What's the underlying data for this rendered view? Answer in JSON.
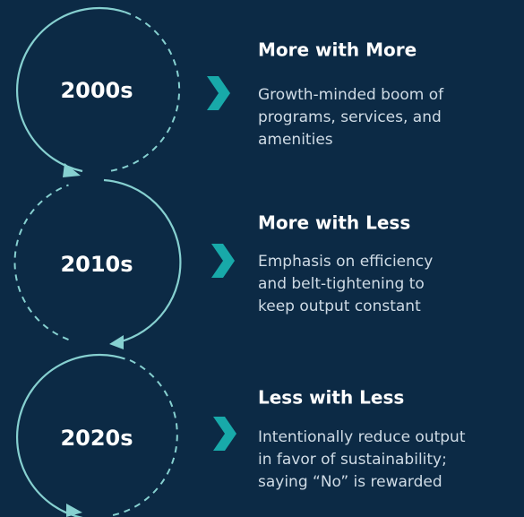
{
  "items": [
    {
      "period": "2000s",
      "title": "More with More",
      "description": [
        "Growth-minded boom of",
        "programs, services, and",
        "amenities"
      ]
    },
    {
      "period": "2010s",
      "title": "More with Less",
      "description": [
        "Emphasis on efficiency",
        "and belt-tightening to",
        "keep output constant"
      ]
    },
    {
      "period": "2020s",
      "title": "Less with Less",
      "description": [
        "Intentionally reduce output",
        "in favor of sustainability;",
        "saying “No” is rewarded"
      ]
    }
  ]
}
